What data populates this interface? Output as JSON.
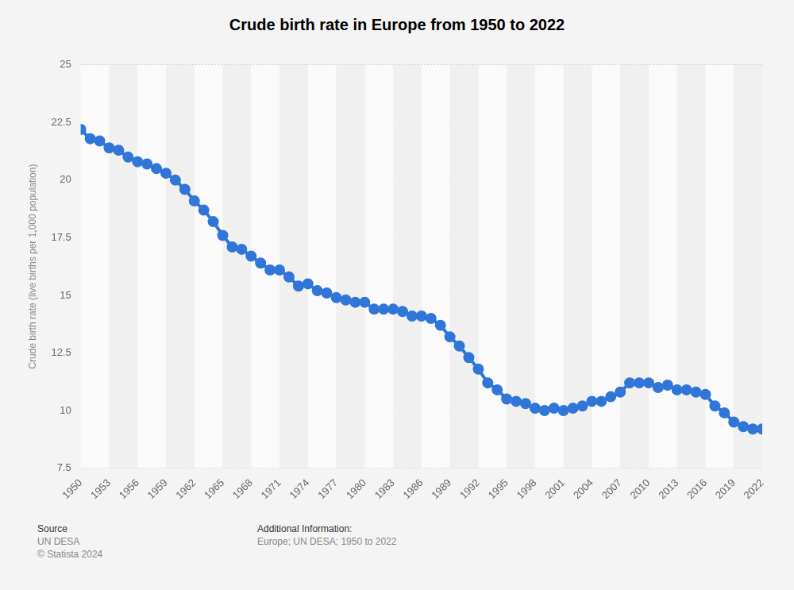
{
  "chart_data": {
    "type": "line",
    "title": "Crude birth rate in Europe from 1950 to 2022",
    "ylabel": "Crude birth rate (live births per 1,000 population)",
    "x": [
      1950,
      1951,
      1952,
      1953,
      1954,
      1955,
      1956,
      1957,
      1958,
      1959,
      1960,
      1961,
      1962,
      1963,
      1964,
      1965,
      1966,
      1967,
      1968,
      1969,
      1970,
      1971,
      1972,
      1973,
      1974,
      1975,
      1976,
      1977,
      1978,
      1979,
      1980,
      1981,
      1982,
      1983,
      1984,
      1985,
      1986,
      1987,
      1988,
      1989,
      1990,
      1991,
      1992,
      1993,
      1994,
      1995,
      1996,
      1997,
      1998,
      1999,
      2000,
      2001,
      2002,
      2003,
      2004,
      2005,
      2006,
      2007,
      2008,
      2009,
      2010,
      2011,
      2012,
      2013,
      2014,
      2015,
      2016,
      2017,
      2018,
      2019,
      2020,
      2021,
      2022
    ],
    "values": [
      22.2,
      21.8,
      21.7,
      21.4,
      21.3,
      21.0,
      20.8,
      20.7,
      20.5,
      20.3,
      20.0,
      19.6,
      19.1,
      18.7,
      18.2,
      17.6,
      17.1,
      17.0,
      16.7,
      16.4,
      16.1,
      16.1,
      15.8,
      15.4,
      15.5,
      15.2,
      15.1,
      14.9,
      14.8,
      14.7,
      14.7,
      14.4,
      14.4,
      14.4,
      14.3,
      14.1,
      14.1,
      14.0,
      13.7,
      13.2,
      12.8,
      12.3,
      11.8,
      11.2,
      10.9,
      10.5,
      10.4,
      10.3,
      10.1,
      10.0,
      10.1,
      10.0,
      10.1,
      10.2,
      10.4,
      10.4,
      10.6,
      10.8,
      11.2,
      11.2,
      11.2,
      11.0,
      11.1,
      10.9,
      10.9,
      10.8,
      10.7,
      10.2,
      9.9,
      9.5,
      9.3,
      9.2,
      9.2
    ],
    "color": "#2f76d8",
    "marker": "circle",
    "xlim": [
      1950,
      2022
    ],
    "xticks": [
      1950,
      1953,
      1956,
      1959,
      1962,
      1965,
      1968,
      1971,
      1974,
      1977,
      1980,
      1983,
      1986,
      1989,
      1992,
      1995,
      1998,
      2001,
      2004,
      2007,
      2010,
      2013,
      2016,
      2019,
      2022
    ],
    "ylim": [
      7.5,
      25
    ],
    "yticks": [
      7.5,
      10,
      12.5,
      15,
      17.5,
      20,
      22.5,
      25
    ],
    "grid": true,
    "source": {
      "heading": "Source",
      "lines": [
        "UN DESA",
        "© Statista 2024"
      ]
    },
    "additional_information": {
      "heading": "Additional Information:",
      "lines": [
        "Europe; UN DESA; 1950 to 2022"
      ]
    }
  }
}
